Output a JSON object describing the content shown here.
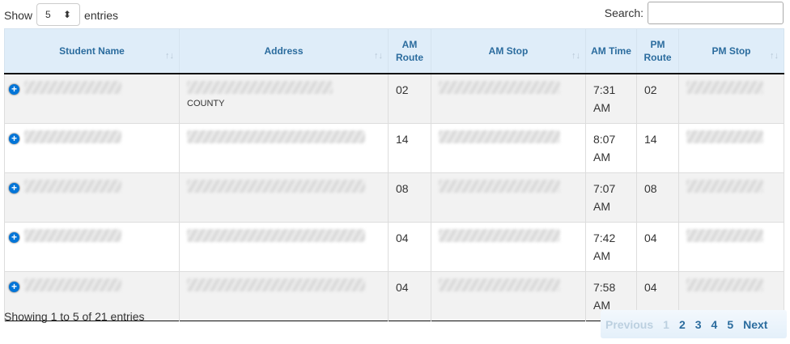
{
  "length": {
    "show_label": "Show",
    "value": "5",
    "entries_label": "entries"
  },
  "search": {
    "label": "Search:",
    "value": ""
  },
  "columns": [
    "Student Name",
    "Address",
    "AM Route",
    "AM Stop",
    "AM Time",
    "PM Route",
    "PM Stop"
  ],
  "rows": [
    {
      "am_route": "02",
      "am_time": "7:31 AM",
      "pm_route": "02",
      "address_partial": "COUNTY"
    },
    {
      "am_route": "14",
      "am_time": "8:07 AM",
      "pm_route": "14"
    },
    {
      "am_route": "08",
      "am_time": "7:07 AM",
      "pm_route": "08"
    },
    {
      "am_route": "04",
      "am_time": "7:42 AM",
      "pm_route": "04"
    },
    {
      "am_route": "04",
      "am_time": "7:58 AM",
      "pm_route": "04"
    }
  ],
  "info": "Showing 1 to 5 of 21 entries",
  "pagination": {
    "previous": "Previous",
    "pages": [
      "1",
      "2",
      "3",
      "4",
      "5"
    ],
    "next": "Next",
    "current": "1"
  }
}
